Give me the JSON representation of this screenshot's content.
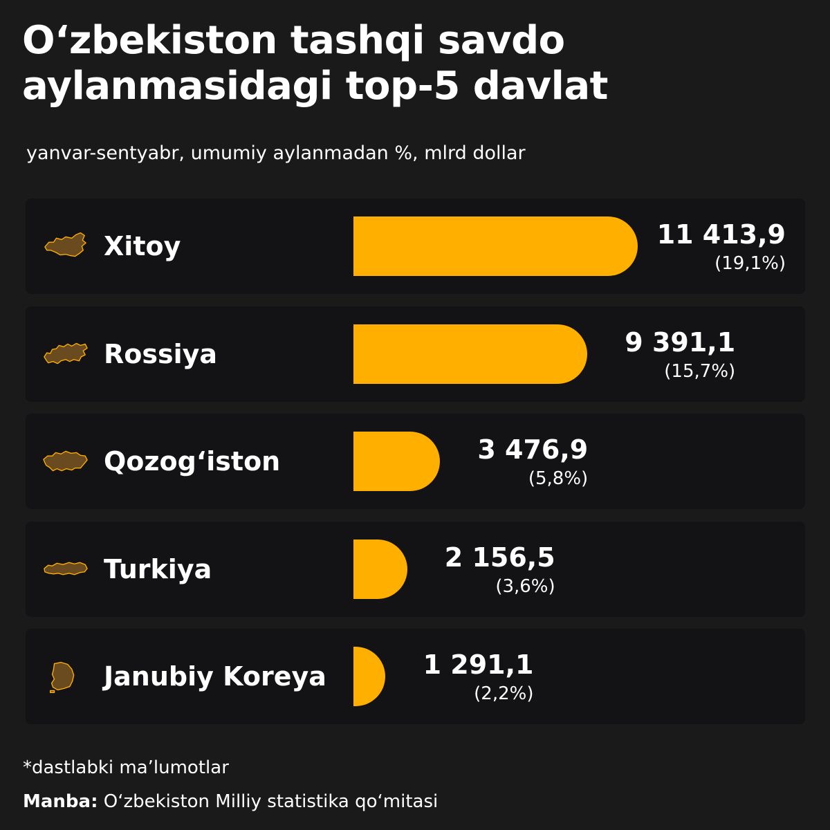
{
  "title": "O‘zbekiston tashqi savdo aylanmasidagi top-5 davlat",
  "subtitle": "yanvar-sentyabr, umumiy aylanmadan %, mlrd dollar",
  "footer": {
    "note": "*dastlabki ma’lumotlar",
    "source_label": "Manba:",
    "source_text": "O‘zbekiston Milliy statistika qo‘mitasi"
  },
  "colors": {
    "background": "#1a1a1b",
    "row": "#131316",
    "bar": "#ffaf00",
    "text": "#ffffff"
  },
  "chart_data": {
    "type": "bar",
    "orientation": "horizontal",
    "title": "O‘zbekiston tashqi savdo aylanmasidagi top-5 davlat",
    "subtitle": "yanvar-sentyabr, umumiy aylanmadan %, mlrd dollar",
    "categories": [
      "Xitoy",
      "Rossiya",
      "Qozog‘iston",
      "Turkiya",
      "Janubiy Koreya"
    ],
    "values": [
      11413.9,
      9391.1,
      3476.9,
      2156.5,
      1291.1
    ],
    "value_labels": [
      "11 413,9",
      "9 391,1",
      "3 476,9",
      "2 156,5",
      "1 291,1"
    ],
    "share_labels": [
      "(19,1%)",
      "(15,7%)",
      "(5,8%)",
      "(3,6%)",
      "(2,2%)"
    ],
    "icons": [
      "china-map-icon",
      "russia-map-icon",
      "kazakhstan-map-icon",
      "turkey-map-icon",
      "south-korea-map-icon"
    ],
    "grid": false,
    "legend": "none"
  }
}
